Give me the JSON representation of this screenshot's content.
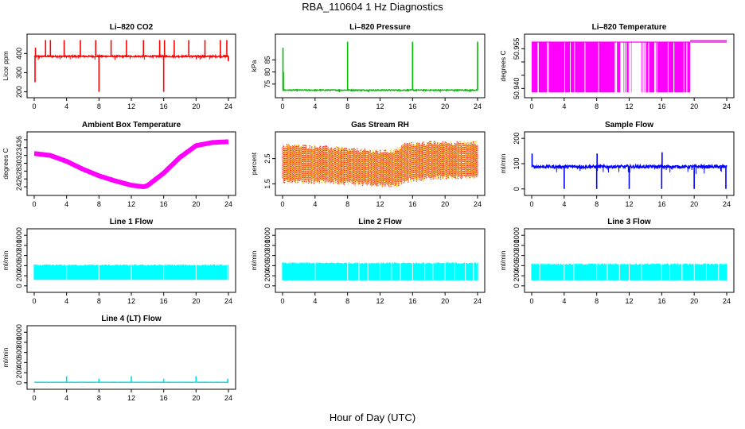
{
  "figure": {
    "title": "RBA_110604  1 Hz Diagnostics",
    "xlabel": "Hour of Day (UTC)"
  },
  "chart_data": [
    {
      "type": "line",
      "title": "Li–820 CO2",
      "ylabel": "Licor ppm",
      "color": "#ff0000",
      "xlim": [
        0,
        24
      ],
      "ylim": [
        190,
        480
      ],
      "xticks": [
        0,
        4,
        8,
        12,
        16,
        20,
        24
      ],
      "yticks": [
        200,
        300,
        400
      ],
      "style": "baseline_spikes",
      "baseline": 385,
      "noise": 4,
      "events": [
        {
          "x": 0.1,
          "y": 250
        },
        {
          "x": 0.15,
          "y": 430
        },
        {
          "x": 1.4,
          "y": 470
        },
        {
          "x": 2.0,
          "y": 470
        },
        {
          "x": 3.7,
          "y": 470
        },
        {
          "x": 5.7,
          "y": 470
        },
        {
          "x": 7.6,
          "y": 470
        },
        {
          "x": 8.0,
          "y": 200
        },
        {
          "x": 9.5,
          "y": 470
        },
        {
          "x": 11.4,
          "y": 470
        },
        {
          "x": 13.5,
          "y": 470
        },
        {
          "x": 15.5,
          "y": 470
        },
        {
          "x": 16.0,
          "y": 200
        },
        {
          "x": 16.1,
          "y": 470
        },
        {
          "x": 17.3,
          "y": 470
        },
        {
          "x": 19.1,
          "y": 470
        },
        {
          "x": 21.1,
          "y": 470
        },
        {
          "x": 23.0,
          "y": 470
        },
        {
          "x": 23.8,
          "y": 470
        },
        {
          "x": 24.0,
          "y": 360
        }
      ]
    },
    {
      "type": "line",
      "title": "Li–820 Pressure",
      "ylabel": "kPa",
      "color": "#00bb00",
      "xlim": [
        0,
        24
      ],
      "ylim": [
        71,
        94
      ],
      "xticks": [
        0,
        4,
        8,
        12,
        16,
        20,
        24
      ],
      "yticks": [
        75,
        80,
        85
      ],
      "style": "baseline_spikes",
      "baseline": 72.5,
      "noise": 0.2,
      "events": [
        {
          "x": 0.05,
          "y": 90
        },
        {
          "x": 0.1,
          "y": 80
        },
        {
          "x": 8.0,
          "y": 92.5
        },
        {
          "x": 16.0,
          "y": 92.5
        },
        {
          "x": 24.0,
          "y": 92.5
        }
      ]
    },
    {
      "type": "line",
      "title": "Li–820 Temperature",
      "ylabel": "degrees C",
      "color": "#ff00ff",
      "xlim": [
        0,
        24
      ],
      "ylim": [
        50.938,
        50.959
      ],
      "xticks": [
        0,
        4,
        8,
        12,
        16,
        20,
        24
      ],
      "yticks": [
        50.94,
        50.945,
        50.95,
        50.955
      ],
      "ytick_labels": [
        "50.940",
        "",
        "",
        "50.955"
      ],
      "style": "two_level",
      "low": 50.9385,
      "high": 50.9575,
      "segments": [
        [
          0,
          4.7
        ],
        [
          4.8,
          10.9
        ],
        [
          11.3,
          12.3
        ],
        [
          13.5,
          15.2
        ],
        [
          15.3,
          19.5
        ]
      ],
      "tail_value": 50.958
    },
    {
      "type": "line",
      "title": "Ambient Box Temperature",
      "ylabel": "degrees C",
      "color": "#ff00ff",
      "xlim": [
        0,
        24
      ],
      "ylim": [
        22.8,
        37
      ],
      "xticks": [
        0,
        4,
        8,
        12,
        16,
        20,
        24
      ],
      "yticks": [
        24,
        26,
        28,
        30,
        32,
        34,
        36
      ],
      "style": "thick_curve",
      "x": [
        0,
        2,
        4,
        6,
        8,
        10,
        12,
        13.5,
        14,
        16,
        18,
        20,
        22,
        24
      ],
      "y": [
        32.5,
        32,
        30.5,
        28.5,
        26.8,
        25.5,
        24.4,
        24.0,
        24.3,
        27.5,
        31.5,
        34.5,
        35.3,
        35.5
      ]
    },
    {
      "type": "scatter",
      "title": "Gas Stream RH",
      "ylabel": "percent",
      "color": "#ff0000",
      "color2": "#e8c000",
      "xlim": [
        0,
        24
      ],
      "ylim": [
        1.2,
        3.4
      ],
      "xticks": [
        0,
        4,
        8,
        12,
        16,
        20,
        24
      ],
      "yticks": [
        1.5,
        2.5
      ],
      "style": "band",
      "x": [
        0,
        4,
        8,
        12,
        14,
        15,
        18,
        24
      ],
      "upper": [
        3.0,
        2.95,
        2.85,
        2.75,
        2.8,
        3.05,
        3.1,
        3.1
      ],
      "lower": [
        1.6,
        1.6,
        1.55,
        1.45,
        1.45,
        1.6,
        1.75,
        1.75
      ]
    },
    {
      "type": "line",
      "title": "Sample Flow",
      "ylabel": "ml/min",
      "color": "#0000ff",
      "xlim": [
        0,
        24
      ],
      "ylim": [
        -10,
        210
      ],
      "xticks": [
        0,
        4,
        8,
        12,
        16,
        20,
        24
      ],
      "yticks": [
        0,
        100,
        200
      ],
      "style": "baseline_spikes",
      "baseline": 88,
      "noise": 6,
      "events": [
        {
          "x": 0.05,
          "y": 140
        },
        {
          "x": 4.0,
          "y": 0
        },
        {
          "x": 8.0,
          "y": 0
        },
        {
          "x": 8.05,
          "y": 140
        },
        {
          "x": 12.0,
          "y": 0
        },
        {
          "x": 16.0,
          "y": 0
        },
        {
          "x": 16.05,
          "y": 145
        },
        {
          "x": 20.0,
          "y": 0
        },
        {
          "x": 23.9,
          "y": 0
        }
      ]
    },
    {
      "type": "area",
      "title": "Line 1 Flow",
      "ylabel": "ml/min",
      "color": "#00ffff",
      "xlim": [
        0,
        24
      ],
      "ylim": [
        -50,
        1050
      ],
      "xticks": [
        0,
        4,
        8,
        12,
        16,
        20,
        24
      ],
      "yticks": [
        0,
        200,
        400,
        600,
        800,
        1000
      ],
      "style": "filled_band",
      "upper_value": 410,
      "lower_value": 120,
      "gaps": [
        4.0,
        8.0,
        12.0,
        16.0,
        20.0,
        23.9
      ]
    },
    {
      "type": "area",
      "title": "Line 2 Flow",
      "ylabel": "ml/min",
      "color": "#00ffff",
      "xlim": [
        0,
        24
      ],
      "ylim": [
        -50,
        1050
      ],
      "xticks": [
        0,
        4,
        8,
        12,
        16,
        20,
        24
      ],
      "yticks": [
        0,
        200,
        400,
        600,
        800,
        1000
      ],
      "style": "filled_band",
      "upper_value": 450,
      "lower_value": 110,
      "gaps": [
        4.0,
        8.0,
        9.4,
        10.5,
        12.0,
        13.4,
        14.5,
        16.0,
        17.5,
        18.5,
        20.0,
        21.2,
        22.5,
        23.5
      ]
    },
    {
      "type": "area",
      "title": "Line 3 Flow",
      "ylabel": "ml/min",
      "color": "#00ffff",
      "xlim": [
        0,
        24
      ],
      "ylim": [
        -50,
        1050
      ],
      "xticks": [
        0,
        4,
        8,
        12,
        16,
        20,
        24
      ],
      "yticks": [
        0,
        200,
        400,
        600,
        800,
        1000
      ],
      "style": "filled_band",
      "upper_value": 430,
      "lower_value": 110,
      "gaps": [
        1.0,
        4.0,
        5.2,
        8.0,
        9.3,
        10.8,
        12.0,
        13.5,
        16.0,
        17.0,
        18.5,
        20.0,
        21.5,
        23.0
      ]
    },
    {
      "type": "line",
      "title": "Line 4 (LT) Flow",
      "ylabel": "ml/min",
      "color": "#00e0e0",
      "xlim": [
        0,
        24
      ],
      "ylim": [
        -50,
        1050
      ],
      "xticks": [
        0,
        4,
        8,
        12,
        16,
        20,
        24
      ],
      "yticks": [
        0,
        200,
        400,
        600,
        800,
        1000
      ],
      "style": "baseline_spikes",
      "baseline": 10,
      "noise": 2,
      "events": [
        {
          "x": 4.0,
          "y": 130
        },
        {
          "x": 8.0,
          "y": 80
        },
        {
          "x": 12.0,
          "y": 130
        },
        {
          "x": 16.0,
          "y": 80
        },
        {
          "x": 20.0,
          "y": 130
        },
        {
          "x": 23.9,
          "y": 80
        }
      ]
    }
  ]
}
